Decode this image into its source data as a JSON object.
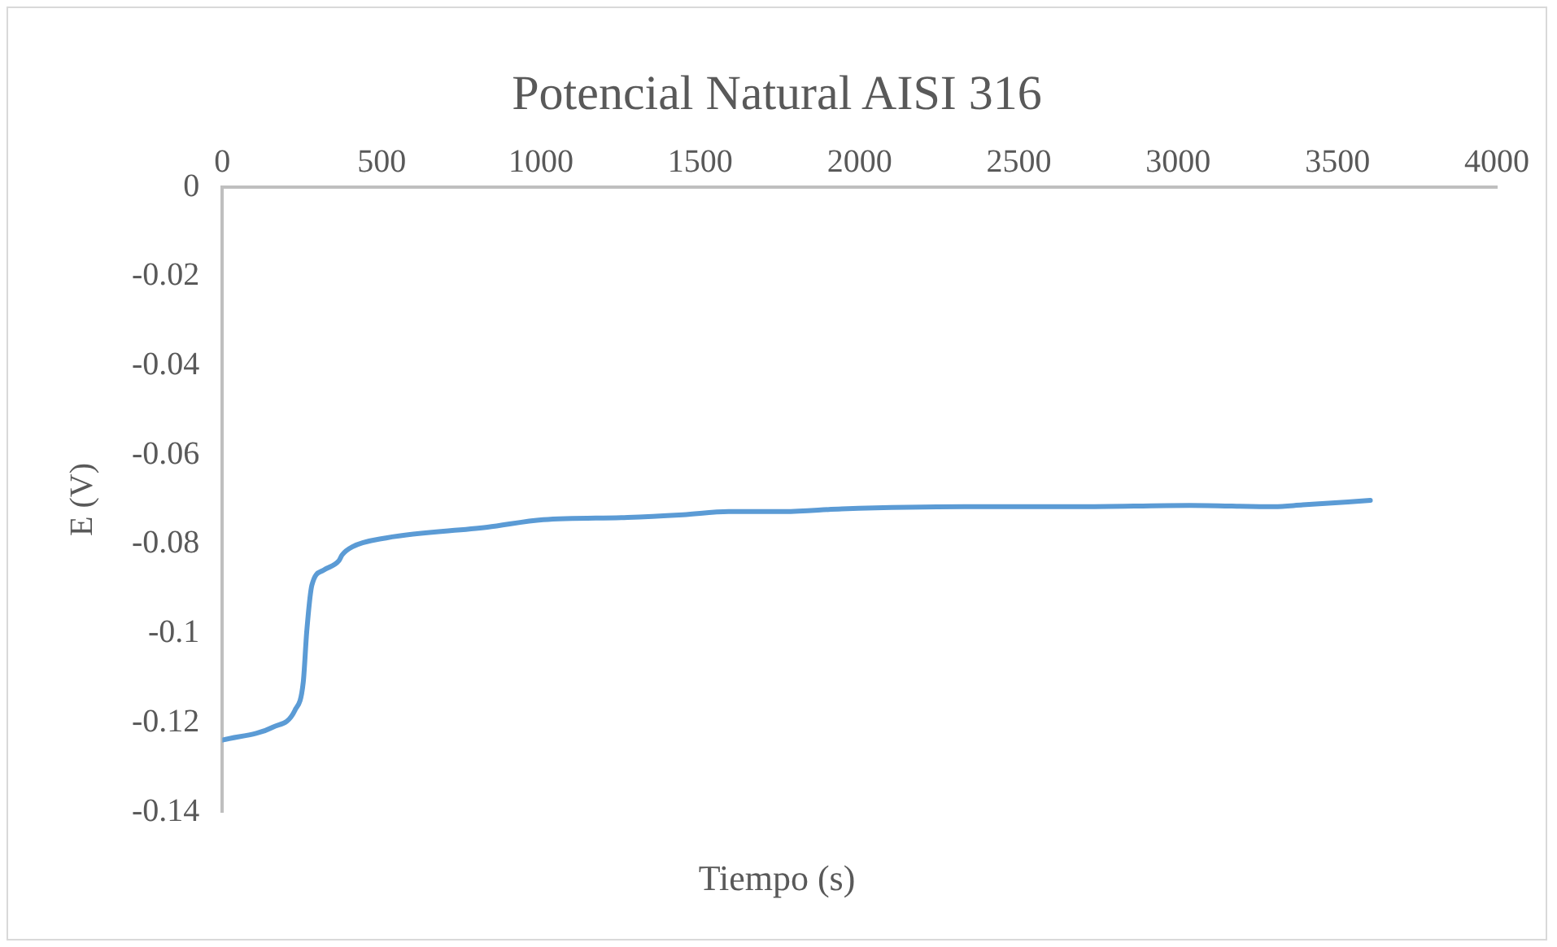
{
  "chart_data": {
    "type": "line",
    "title": "Potencial Natural AISI 316",
    "xlabel": "Tiempo (s)",
    "ylabel": "E (V)",
    "x": [
      0,
      159,
      228,
      254,
      265,
      281,
      318,
      366,
      376,
      408,
      514,
      832,
      1007,
      1272,
      1446,
      1589,
      1764,
      1944,
      2331,
      2686,
      3036,
      3301,
      3391,
      3603
    ],
    "series": [
      {
        "color": "#5b9bd5",
        "values": [
          -0.1239,
          -0.121,
          -0.1172,
          -0.1109,
          -0.0995,
          -0.0892,
          -0.0858,
          -0.0837,
          -0.0824,
          -0.0806,
          -0.0786,
          -0.0762,
          -0.0745,
          -0.074,
          -0.0734,
          -0.0727,
          -0.0727,
          -0.0721,
          -0.0716,
          -0.0716,
          -0.0713,
          -0.0716,
          -0.0712,
          -0.0702
        ]
      }
    ],
    "xlim": [
      0,
      4000
    ],
    "xticks": [
      0,
      500,
      1000,
      1500,
      2000,
      2500,
      3000,
      3500,
      4000
    ],
    "ylim": [
      -0.14,
      0
    ],
    "yticks": [
      -0.14,
      -0.12,
      -0.1,
      -0.08,
      -0.06,
      -0.04,
      -0.02,
      0
    ],
    "grid": false,
    "legend": false,
    "marker": "none",
    "line_style": "solid"
  }
}
